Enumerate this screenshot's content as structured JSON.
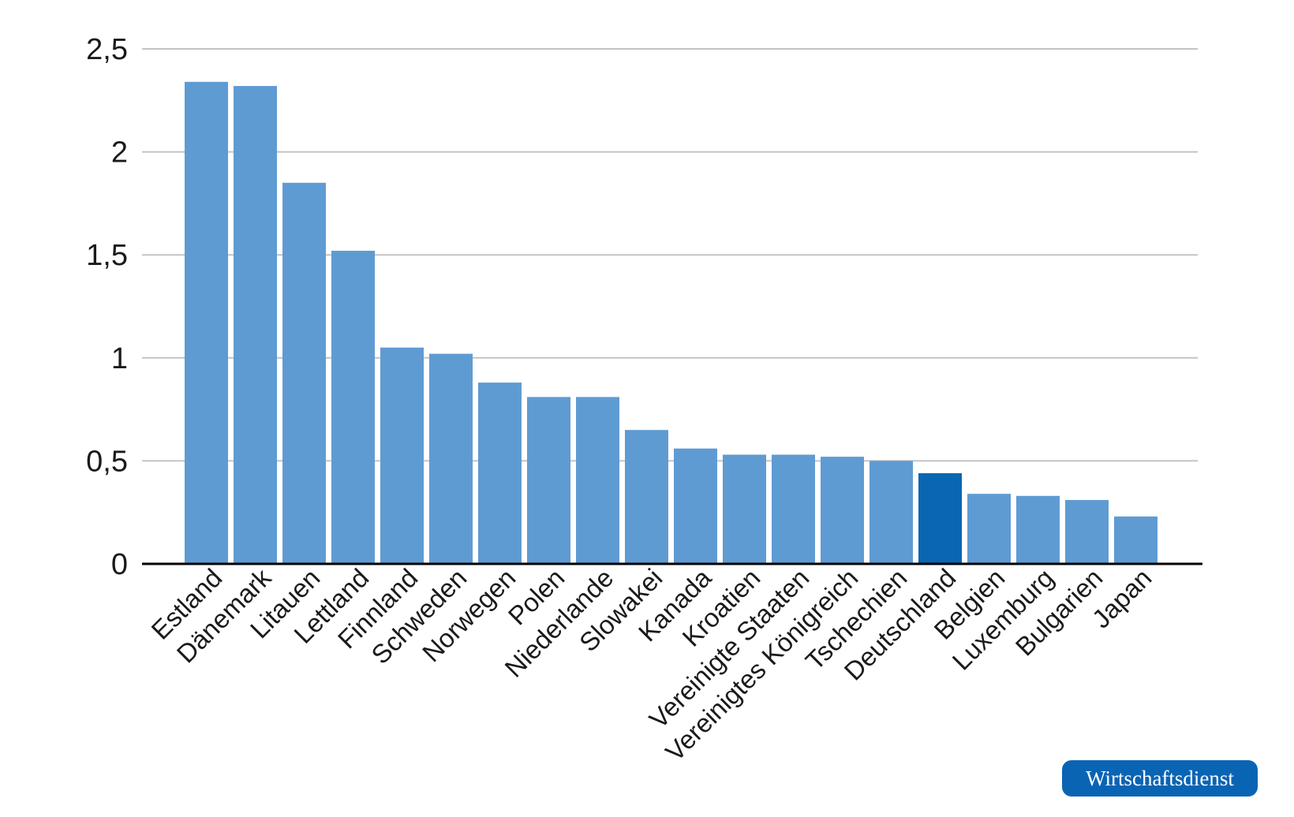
{
  "chart_data": {
    "type": "bar",
    "categories": [
      "Estland",
      "Dänemark",
      "Litauen",
      "Lettland",
      "Finnland",
      "Schweden",
      "Norwegen",
      "Polen",
      "Niederlande",
      "Slowakei",
      "Kanada",
      "Kroatien",
      "Vereinigte Staaten",
      "Vereinigtes Königreich",
      "Tschechien",
      "Deutschland",
      "Belgien",
      "Luxemburg",
      "Bulgarien",
      "Japan"
    ],
    "values": [
      2.34,
      2.32,
      1.85,
      1.52,
      1.05,
      1.02,
      0.88,
      0.81,
      0.81,
      0.65,
      0.56,
      0.53,
      0.53,
      0.52,
      0.5,
      0.44,
      0.34,
      0.33,
      0.31,
      0.23
    ],
    "ylim": [
      0,
      2.5
    ],
    "yticks": [
      0,
      0.5,
      1,
      1.5,
      2,
      2.5
    ],
    "ytick_labels": [
      "0",
      "0,5",
      "1",
      "1,5",
      "2",
      "2,5"
    ],
    "grid": true,
    "colors": {
      "bar": "#5f9bd3",
      "highlight": "#0a66b3",
      "grid": "#c4c4c4",
      "axis": "#000000"
    },
    "highlight_category": "Deutschland"
  },
  "badge": {
    "text": "Wirtschaftsdienst",
    "color": "#0a64b4"
  }
}
